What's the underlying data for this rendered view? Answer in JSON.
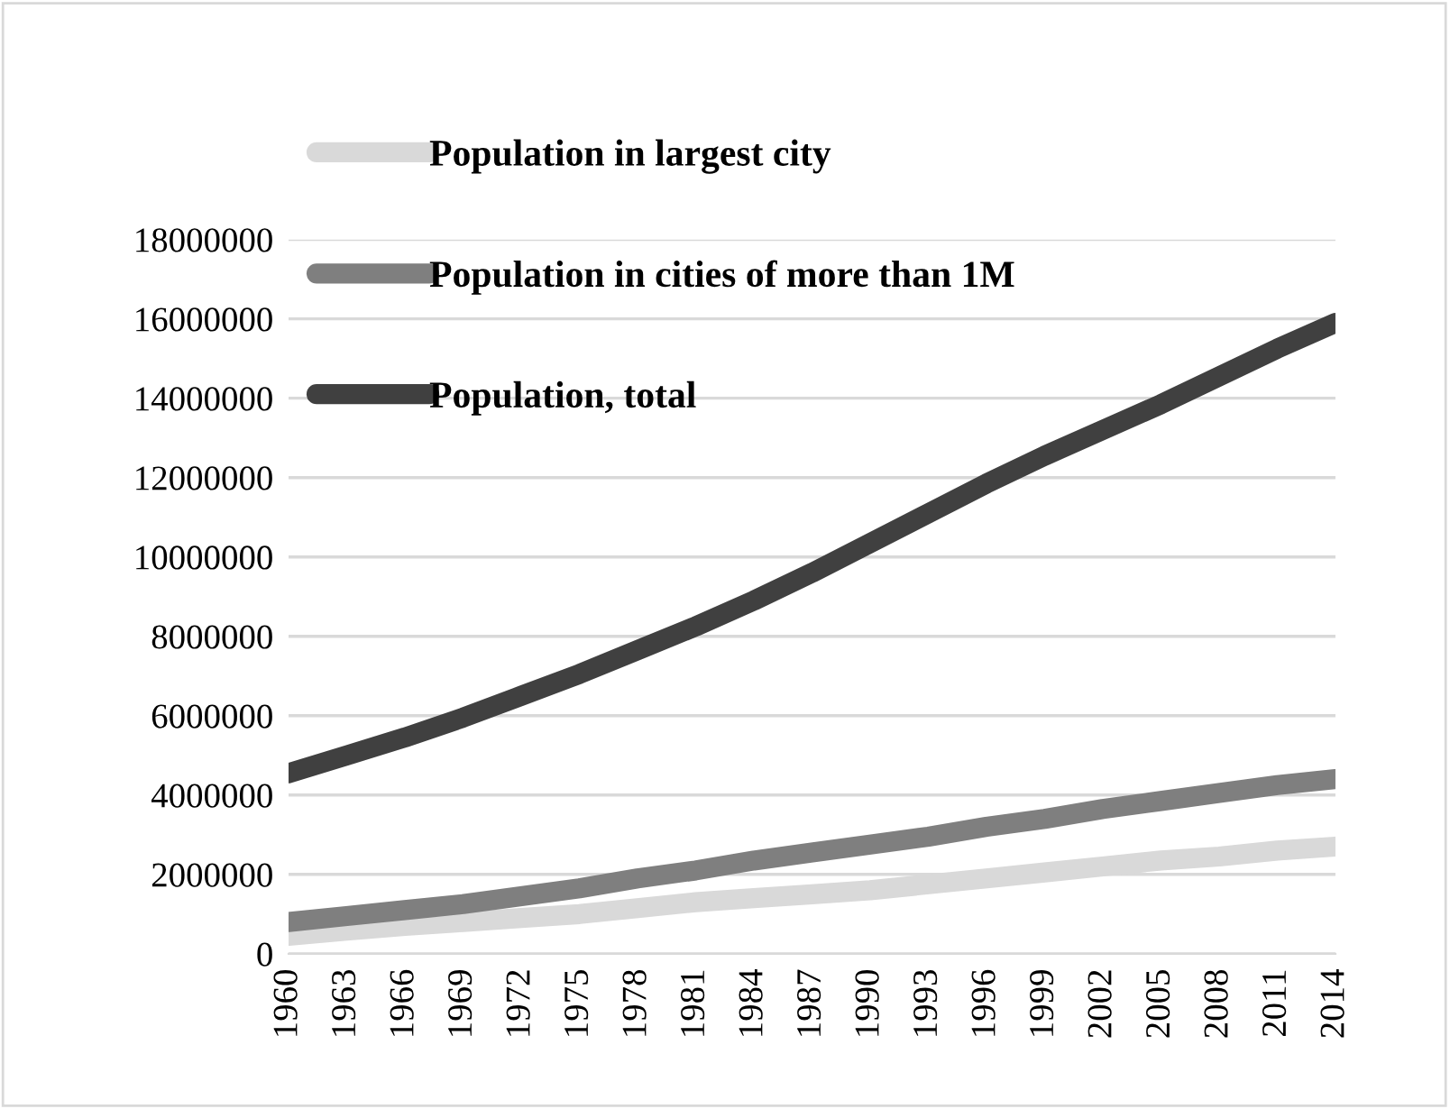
{
  "chart_data": {
    "type": "line",
    "categories": [
      "1960",
      "1963",
      "1966",
      "1969",
      "1972",
      "1975",
      "1978",
      "1981",
      "1984",
      "1987",
      "1990",
      "1993",
      "1996",
      "1999",
      "2002",
      "2005",
      "2008",
      "2011",
      "2014"
    ],
    "series": [
      {
        "name": "Population in largest city",
        "color": "#d9d9d9",
        "values": [
          450000,
          580000,
          700000,
          800000,
          900000,
          1000000,
          1150000,
          1300000,
          1400000,
          1500000,
          1600000,
          1750000,
          1900000,
          2050000,
          2200000,
          2350000,
          2450000,
          2600000,
          2700000
        ]
      },
      {
        "name": "Population in cities of more than 1M",
        "color": "#7f7f7f",
        "values": [
          800000,
          950000,
          1100000,
          1250000,
          1450000,
          1650000,
          1900000,
          2100000,
          2350000,
          2550000,
          2750000,
          2950000,
          3200000,
          3400000,
          3650000,
          3850000,
          4050000,
          4250000,
          4400000
        ]
      },
      {
        "name": "Population, total",
        "color": "#404040",
        "values": [
          4550000,
          5000000,
          5450000,
          5950000,
          6500000,
          7050000,
          7650000,
          8250000,
          8900000,
          9600000,
          10350000,
          11100000,
          11850000,
          12550000,
          13200000,
          13850000,
          14550000,
          15250000,
          15900000
        ]
      }
    ],
    "ylim": [
      0,
      18000000
    ],
    "yticks": [
      0,
      2000000,
      4000000,
      6000000,
      8000000,
      10000000,
      12000000,
      14000000,
      16000000,
      18000000
    ],
    "grid": "y",
    "legend": "top left",
    "marker": "none",
    "line_style": "solid"
  }
}
